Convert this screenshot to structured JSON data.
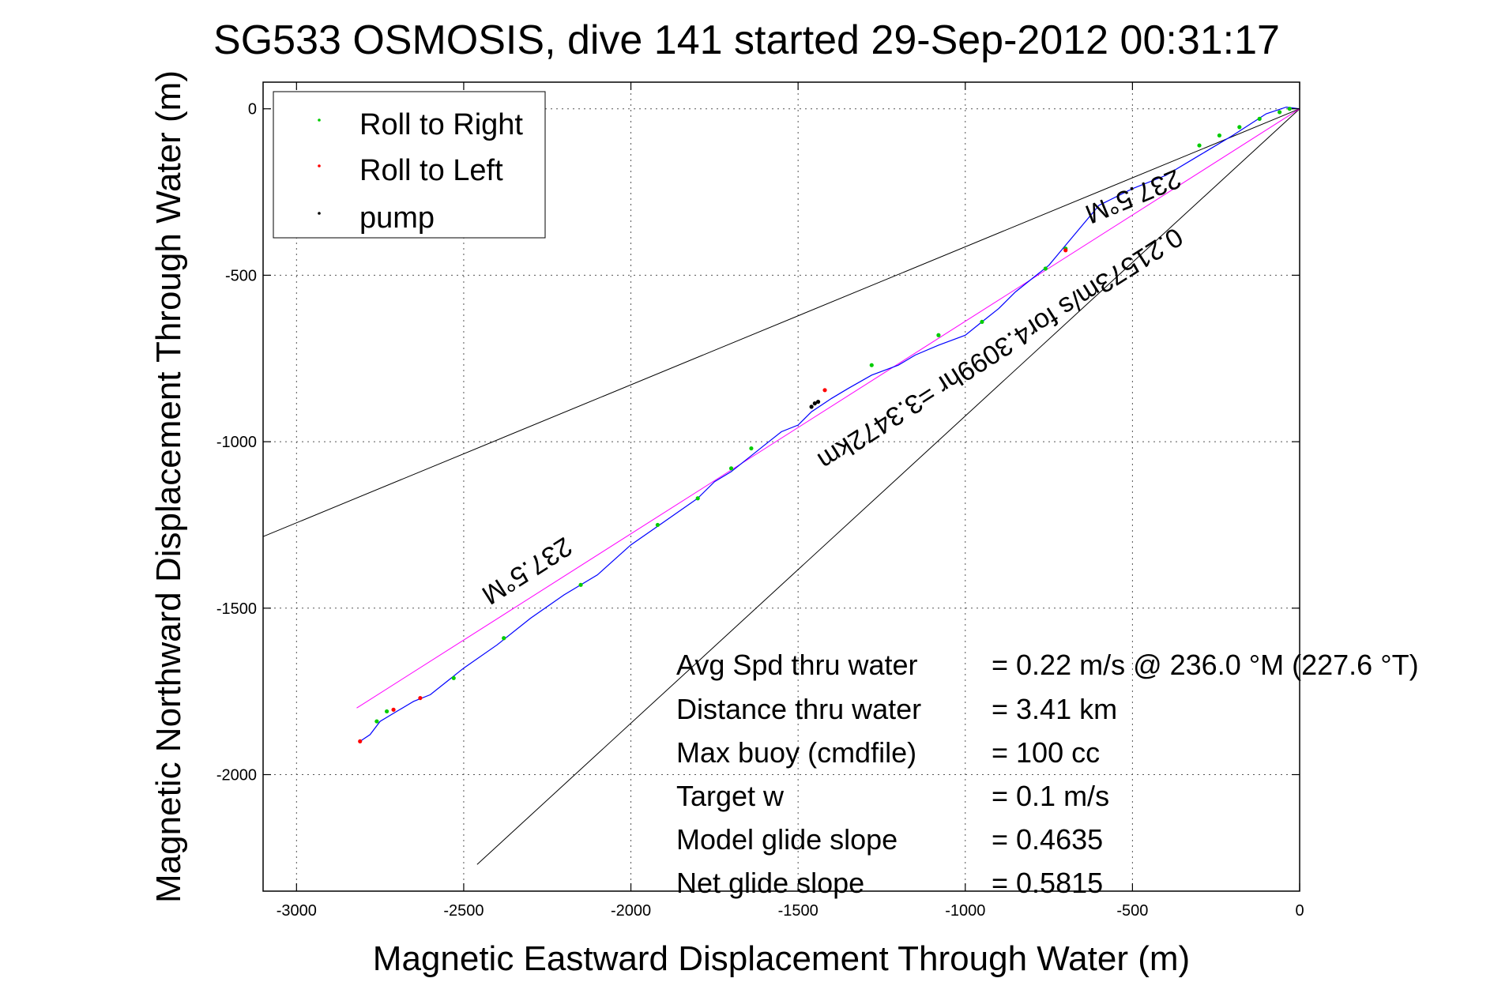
{
  "chart_data": {
    "type": "scatter",
    "title": "SG533 OSMOSIS, dive 141 started 29-Sep-2012 00:31:17",
    "xlabel": "Magnetic Eastward Displacement Through Water (m)",
    "ylabel": "Magnetic Northward Displacement Through Water (m)",
    "xlim": [
      -3100,
      0
    ],
    "ylim": [
      -2350,
      80
    ],
    "xticks": [
      -3000,
      -2500,
      -2000,
      -1500,
      -1000,
      -500,
      0
    ],
    "yticks": [
      0,
      -500,
      -1000,
      -1500,
      -2000
    ],
    "xtick_labels": [
      "-3000",
      "-2500",
      "-2000",
      "-1500",
      "-1000",
      "-500",
      "0"
    ],
    "ytick_labels": [
      "0",
      "-500",
      "-1000",
      "-1500",
      "-2000"
    ],
    "grid": true,
    "legend": {
      "placement": "top-left",
      "entries": [
        {
          "label": "Roll to Right",
          "color": "#00cc00"
        },
        {
          "label": "Roll to Left",
          "color": "#ff0000"
        },
        {
          "label": "pump",
          "color": "#000000"
        }
      ]
    },
    "track": {
      "color": "#0000ff",
      "x": [
        0,
        -40,
        -100,
        -200,
        -300,
        -400,
        -500,
        -600,
        -700,
        -750,
        -800,
        -850,
        -900,
        -950,
        -1000,
        -1080,
        -1150,
        -1200,
        -1280,
        -1350,
        -1400,
        -1460,
        -1500,
        -1550,
        -1600,
        -1650,
        -1700,
        -1750,
        -1800,
        -1900,
        -2000,
        -2100,
        -2200,
        -2300,
        -2400,
        -2500,
        -2550,
        -2600,
        -2650,
        -2700,
        -2750,
        -2780,
        -2810
      ],
      "y": [
        0,
        5,
        -15,
        -80,
        -140,
        -200,
        -240,
        -290,
        -410,
        -470,
        -510,
        -550,
        -600,
        -640,
        -680,
        -710,
        -740,
        -770,
        -800,
        -840,
        -870,
        -910,
        -950,
        -970,
        -1010,
        -1050,
        -1090,
        -1120,
        -1170,
        -1240,
        -1310,
        -1400,
        -1460,
        -1530,
        -1610,
        -1680,
        -1720,
        -1760,
        -1780,
        -1810,
        -1840,
        -1880,
        -1900
      ]
    },
    "roll_right": {
      "x": [
        -30,
        -60,
        -120,
        -180,
        -240,
        -300,
        -700,
        -760,
        -950,
        -1080,
        -1280,
        -1640,
        -1700,
        -1800,
        -1920,
        -2150,
        -2380,
        -2530,
        -2730,
        -2760
      ],
      "y": [
        0,
        -10,
        -30,
        -55,
        -80,
        -110,
        -420,
        -480,
        -640,
        -680,
        -770,
        -1020,
        -1080,
        -1170,
        -1250,
        -1430,
        -1590,
        -1710,
        -1810,
        -1840
      ]
    },
    "roll_left": {
      "x": [
        -700,
        -1420,
        -2630,
        -2710,
        -2810
      ],
      "y": [
        -425,
        -845,
        -1770,
        -1805,
        -1900
      ]
    },
    "pump": {
      "x": [
        -1460,
        -1450,
        -1440
      ],
      "y": [
        -895,
        -885,
        -880
      ]
    },
    "reference_lines": [
      {
        "name": "heading-upper",
        "color": "#000000",
        "x": [
          0,
          -3100
        ],
        "y": [
          0,
          -1285
        ]
      },
      {
        "name": "heading-lower",
        "color": "#000000",
        "x": [
          0,
          -2460
        ],
        "y": [
          0,
          -2270
        ]
      },
      {
        "name": "heading-center",
        "color": "#ff00ff",
        "x": [
          0,
          -2820
        ],
        "y": [
          0,
          -1800
        ]
      }
    ],
    "annotations": [
      {
        "text": "237.5°M"
      },
      {
        "text": "0.21573m/s for4.3099hr =3.3472km"
      },
      {
        "text": "237.5°M"
      }
    ],
    "stats": [
      {
        "label": "Avg Spd thru water",
        "value": "=  0.22 m/s @ 236.0 °M (227.6 °T)"
      },
      {
        "label": "Distance thru water",
        "value": "=  3.41 km"
      },
      {
        "label": "Max buoy (cmdfile)",
        "value": "= 100 cc"
      },
      {
        "label": "Target w",
        "value": "= 0.1 m/s"
      },
      {
        "label": "Model glide slope",
        "value": "= 0.4635"
      },
      {
        "label": "Net glide slope",
        "value": "= 0.5815"
      }
    ]
  }
}
